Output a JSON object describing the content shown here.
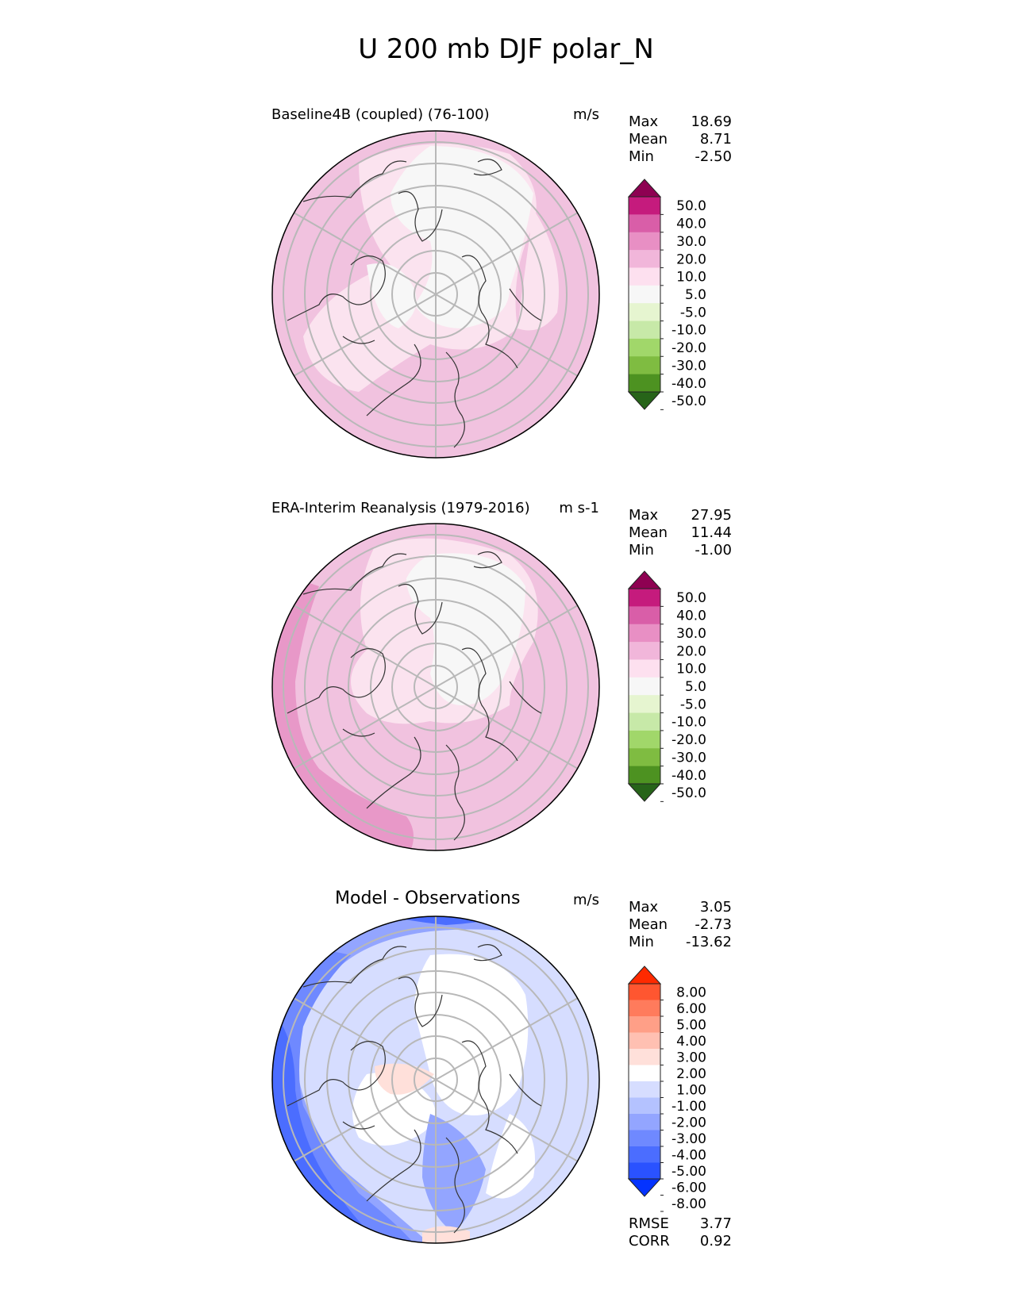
{
  "title": "U 200 mb DJF polar_N",
  "colors": {
    "pink_scale": [
      "#276419",
      "#4d9221",
      "#7fbc41",
      "#a1d76a",
      "#c7e9a8",
      "#e6f5d0",
      "#f7f7f7",
      "#fde0ef",
      "#f1b6da",
      "#e88fc4",
      "#d95ea8",
      "#c51b7d",
      "#8e0152"
    ],
    "diff_scale": [
      "#0433ff",
      "#2a52ff",
      "#4b6dff",
      "#6f89ff",
      "#93a5ff",
      "#b4c2ff",
      "#d6ddff",
      "#ffffff",
      "#ffe0da",
      "#ffc0b2",
      "#ff9f87",
      "#ff7b5c",
      "#ff5630",
      "#ff2a00"
    ]
  },
  "panels": [
    {
      "title": "Baseline4B (coupled) (76-100)",
      "units": "m/s",
      "stats": [
        {
          "label": "Max",
          "value": "18.69"
        },
        {
          "label": "Mean",
          "value": "8.71"
        },
        {
          "label": "Min",
          "value": "-2.50"
        }
      ],
      "colorbar_labels": [
        "50.0",
        "40.0",
        "30.0",
        "20.0",
        "10.0",
        "5.0",
        "-5.0",
        "-10.0",
        "-20.0",
        "-30.0",
        "-40.0",
        "-50.0"
      ]
    },
    {
      "title": "ERA-Interim Reanalysis (1979-2016)",
      "units": "m s-1",
      "stats": [
        {
          "label": "Max",
          "value": "27.95"
        },
        {
          "label": "Mean",
          "value": "11.44"
        },
        {
          "label": "Min",
          "value": "-1.00"
        }
      ],
      "colorbar_labels": [
        "50.0",
        "40.0",
        "30.0",
        "20.0",
        "10.0",
        "5.0",
        "-5.0",
        "-10.0",
        "-20.0",
        "-30.0",
        "-40.0",
        "-50.0"
      ]
    },
    {
      "title": "Model - Observations",
      "units": "m/s",
      "stats": [
        {
          "label": "Max",
          "value": "3.05"
        },
        {
          "label": "Mean",
          "value": "-2.73"
        },
        {
          "label": "Min",
          "value": "-13.62"
        }
      ],
      "colorbar_labels": [
        "8.00",
        "6.00",
        "5.00",
        "4.00",
        "3.00",
        "2.00",
        "1.00",
        "-1.00",
        "-2.00",
        "-3.00",
        "-4.00",
        "-5.00",
        "-6.00",
        "-8.00"
      ],
      "footer": [
        {
          "label": "RMSE",
          "value": "3.77"
        },
        {
          "label": "CORR",
          "value": "0.92"
        }
      ]
    }
  ]
}
